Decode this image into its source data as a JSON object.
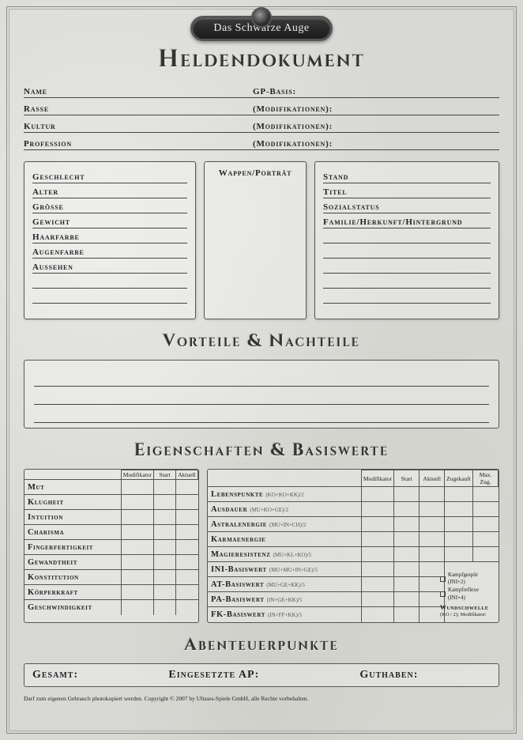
{
  "badge_text": "Das Schwarze Auge",
  "main_title": "Heldendokument",
  "header_fields_left": [
    {
      "label": "Name"
    },
    {
      "label": "Rasse"
    },
    {
      "label": "Kultur"
    },
    {
      "label": "Profession"
    }
  ],
  "header_fields_right": [
    {
      "label": "GP-Basis:"
    },
    {
      "label": "(Modifikationen):"
    },
    {
      "label": "(Modifikationen):"
    },
    {
      "label": "(Modifikationen):"
    }
  ],
  "physical_fields": [
    "Geschlecht",
    "Alter",
    "Grösse",
    "Gewicht",
    "Haarfarbe",
    "Augenfarbe",
    "Aussehen"
  ],
  "portrait_caption": "Wappen/Porträt",
  "social_fields": [
    "Stand",
    "Titel",
    "Sozialstatus",
    "Familie/Herkunft/Hintergrund"
  ],
  "section_vn": "Vorteile & Nachteile",
  "section_eb": "Eigenschaften & Basiswerte",
  "attr_headers": [
    "Modifikator",
    "Start",
    "Aktuell"
  ],
  "attributes": [
    "Mut",
    "Klugheit",
    "Intuition",
    "Charisma",
    "Fingerfertigkeit",
    "Gewandtheit",
    "Konstitution",
    "Körperkraft",
    "Geschwindigkeit"
  ],
  "base_headers": [
    "Modifikator",
    "Start",
    "Aktuell",
    "Zugekauft",
    "Max. Zug."
  ],
  "base_values": [
    {
      "name": "Lebenspunkte",
      "formula": "(KO+KO+KK)/2"
    },
    {
      "name": "Ausdauer",
      "formula": "(MU+KO+GE)/2"
    },
    {
      "name": "Astralenergie",
      "formula": "(MU+IN+CH)/2"
    },
    {
      "name": "Karmaenergie",
      "formula": ""
    },
    {
      "name": "Magieresistenz",
      "formula": "(MU+KL+KO)/5"
    },
    {
      "name": "INI-Basiswert",
      "formula": "(MU+MU+IN+GE)/5"
    },
    {
      "name": "AT-Basiswert",
      "formula": "(MU+GE+KK)/5"
    },
    {
      "name": "PA-Basiswert",
      "formula": "(IN+GE+KK)/5"
    },
    {
      "name": "FK-Basiswert",
      "formula": "(IN+FF+KK)/5"
    }
  ],
  "sidebox": {
    "chk1": "Kampfgespür (INI+2)",
    "chk2": "Kampfreflexe (INI+4)",
    "ws_label": "Wundschwelle",
    "ws_formula": "(KO / 2); Modifikator:"
  },
  "section_ap": "Abenteuerpunkte",
  "ap_fields": [
    "Gesamt:",
    "Eingesetzte AP:",
    "Guthaben:"
  ],
  "copyright": "Darf zum eigenen Gebrauch photokopiert werden. Copyright © 2007 by Ulisses-Spiele GmbH, alle Rechte vorbehalten."
}
